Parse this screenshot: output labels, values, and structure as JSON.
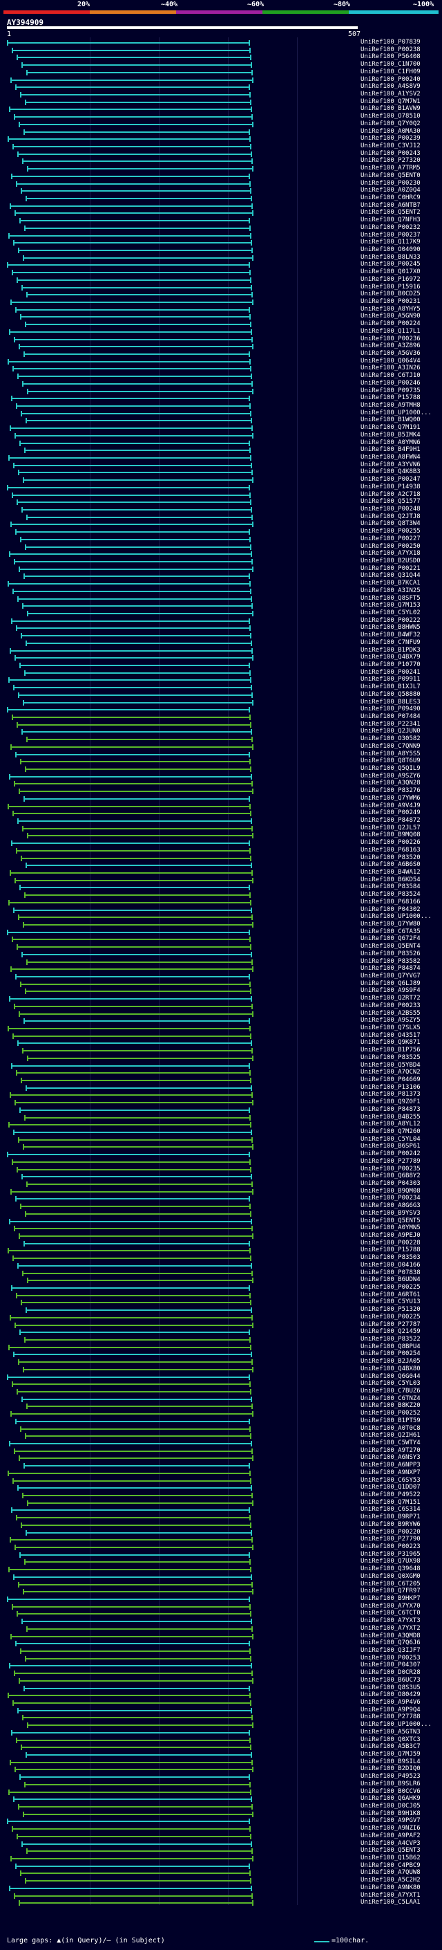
{
  "scale": {
    "labels": [
      "20%",
      "~40%",
      "~60%",
      "~80%",
      "~100%"
    ],
    "colors": [
      "#e02020",
      "#e07820",
      "#a020a0",
      "#20a020",
      "#20c0d0"
    ]
  },
  "query": {
    "title": "AY394909",
    "start": "1",
    "end": "507"
  },
  "legend": {
    "text": "Large gaps: ▲(in Query)/— (in Subject)",
    "scale": "=100char."
  },
  "hits": [
    "UniRef100_P07839",
    "UniRef100_P00238",
    "UniRef100_P56408",
    "UniRef100_C1N700",
    "UniRef100_C1FH09",
    "UniRef100_P00240",
    "UniRef100_A4S8V9",
    "UniRef100_A1YSV2",
    "UniRef100_Q7M7W1",
    "UniRef100_B1AVW9",
    "UniRef100_O78510",
    "UniRef100_Q7Y0Q2",
    "UniRef100_A0MA30",
    "UniRef100_P00239",
    "UniRef100_C3VJ12",
    "UniRef100_P00243",
    "UniRef100_P27320",
    "UniRef100_A7TRM5",
    "UniRef100_Q5ENT0",
    "UniRef100_P00230",
    "UniRef100_A0Z0Q4",
    "UniRef100_C0HRC9",
    "UniRef100_A6NTB7",
    "UniRef100_Q5ENT2",
    "UniRef100_Q7NFH3",
    "UniRef100_P00232",
    "UniRef100_P00237",
    "UniRef100_Q117K9",
    "UniRef100_O04090",
    "UniRef100_B8LN33",
    "UniRef100_P00245",
    "UniRef100_Q017X0",
    "UniRef100_P16972",
    "UniRef100_P15916",
    "UniRef100_B0CDZ5",
    "UniRef100_P00231",
    "UniRef100_A8YHY5",
    "UniRef100_A5GN90",
    "UniRef100_P00224",
    "UniRef100_Q117L1",
    "UniRef100_P00236",
    "UniRef100_A3Z896",
    "UniRef100_A5GV36",
    "UniRef100_Q064V4",
    "UniRef100_A3IN26",
    "UniRef100_C6TJ10",
    "UniRef100_P00246",
    "UniRef100_P09735",
    "UniRef100_P15788",
    "UniRef100_A9TMH8",
    "UniRef100_UP1000...",
    "UniRef100_B1WQ00",
    "UniRef100_Q7M191",
    "UniRef100_B5IMK4",
    "UniRef100_A0YMN6",
    "UniRef100_B4F9H1",
    "UniRef100_A8FWN4",
    "UniRef100_A3YVN6",
    "UniRef100_Q4K8B3",
    "UniRef100_P00247",
    "UniRef100_P14938",
    "UniRef100_A2C718",
    "UniRef100_Q51577",
    "UniRef100_P00248",
    "UniRef100_Q2JTJ8",
    "UniRef100_Q8T3W4",
    "UniRef100_P00255",
    "UniRef100_P00227",
    "UniRef100_P00250",
    "UniRef100_A7YX18",
    "UniRef100_B2USD0",
    "UniRef100_P00221",
    "UniRef100_Q31Q44",
    "UniRef100_B7KCA1",
    "UniRef100_A3IN25",
    "UniRef100_Q8SFT5",
    "UniRef100_Q7M153",
    "UniRef100_C5YL02",
    "UniRef100_P00222",
    "UniRef100_B8HWN5",
    "UniRef100_B4WF32",
    "UniRef100_C7NFU9",
    "UniRef100_B1PDK3",
    "UniRef100_Q4BX79",
    "UniRef100_P10770",
    "UniRef100_P00241",
    "UniRef100_P09911",
    "UniRef100_B1XJL7",
    "UniRef100_Q58880",
    "UniRef100_B8LES3",
    "UniRef100_P09490",
    "UniRef100_P07484",
    "UniRef100_P22341",
    "UniRef100_Q2JUN0",
    "UniRef100_O30582",
    "UniRef100_C7QNN9",
    "UniRef100_A8Y5S5",
    "UniRef100_Q8T6U9",
    "UniRef100_Q5QIL9",
    "UniRef100_A9SZY6",
    "UniRef100_A3QN28",
    "UniRef100_P83276",
    "UniRef100_Q7YWM6",
    "UniRef100_A9V4J9",
    "UniRef100_P00249",
    "UniRef100_P84872",
    "UniRef100_Q2JL57",
    "UniRef100_B9MQ08",
    "UniRef100_P00226",
    "UniRef100_P68163",
    "UniRef100_P83520",
    "UniRef100_A6B6S0",
    "UniRef100_B4WA12",
    "UniRef100_B6KD54",
    "UniRef100_P83584",
    "UniRef100_P83524",
    "UniRef100_P68166",
    "UniRef100_P04302",
    "UniRef100_UP1000...",
    "UniRef100_Q7YW80",
    "UniRef100_C6TA35",
    "UniRef100_Q672F4",
    "UniRef100_Q5ENT4",
    "UniRef100_P83526",
    "UniRef100_P83582",
    "UniRef100_P84874",
    "UniRef100_Q7YVG7",
    "UniRef100_Q6LJ89",
    "UniRef100_A9S9F4",
    "UniRef100_Q2RT72",
    "UniRef100_P00233",
    "UniRef100_A2BS55",
    "UniRef100_A9SZY5",
    "UniRef100_Q7SLX5",
    "UniRef100_O43517",
    "UniRef100_Q9K871",
    "UniRef100_B1P756",
    "UniRef100_P83525",
    "UniRef100_Q5YBD4",
    "UniRef100_A7QCN2",
    "UniRef100_P04669",
    "UniRef100_P13106",
    "UniRef100_P81373",
    "UniRef100_Q9Z0F1",
    "UniRef100_P84873",
    "UniRef100_B4B255",
    "UniRef100_A8YL12",
    "UniRef100_Q7M260",
    "UniRef100_C5YL04",
    "UniRef100_B6SP61",
    "UniRef100_P00242",
    "UniRef100_P27789",
    "UniRef100_P00235",
    "UniRef100_Q6B8Y2",
    "UniRef100_P04303",
    "UniRef100_B9QM08",
    "UniRef100_P00234",
    "UniRef100_A8G6G3",
    "UniRef100_B9YSV3",
    "UniRef100_Q5ENT5",
    "UniRef100_A0YMN5",
    "UniRef100_A9PEJ0",
    "UniRef100_P00228",
    "UniRef100_P15788",
    "UniRef100_P83503",
    "UniRef100_O04166",
    "UniRef100_P07838",
    "UniRef100_B6UDN4",
    "UniRef100_P00225",
    "UniRef100_A6RT61",
    "UniRef100_C5YU13",
    "UniRef100_P51320",
    "UniRef100_P00225",
    "UniRef100_P27787",
    "UniRef100_Q21459",
    "UniRef100_P83522",
    "UniRef100_Q8BPU4",
    "UniRef100_P00254",
    "UniRef100_B2JA05",
    "UniRef100_Q4BX80",
    "UniRef100_Q6G044",
    "UniRef100_C5YL03",
    "UniRef100_C7BUZ6",
    "UniRef100_C6TNZ4",
    "UniRef100_B8KZ20",
    "UniRef100_P00252",
    "UniRef100_B1PT59",
    "UniRef100_A0T0C8",
    "UniRef100_Q2IH61",
    "UniRef100_C5WTY4",
    "UniRef100_A9T270",
    "UniRef100_A6NSY3",
    "UniRef100_A6NPP3",
    "UniRef100_A9NXP7",
    "UniRef100_C6SY53",
    "UniRef100_Q1DD07",
    "UniRef100_P49522",
    "UniRef100_Q7M151",
    "UniRef100_C6S314",
    "UniRef100_B9RP71",
    "UniRef100_B9RYW6",
    "UniRef100_P00220",
    "UniRef100_P27790",
    "UniRef100_P00223",
    "UniRef100_P31965",
    "UniRef100_Q7UX98",
    "UniRef100_Q39648",
    "UniRef100_Q0XGM0",
    "UniRef100_C6T205",
    "UniRef100_Q7FR97",
    "UniRef100_B9HKP7",
    "UniRef100_A7YX70",
    "UniRef100_C6TCT0",
    "UniRef100_A7YXT3",
    "UniRef100_A7YXT2",
    "UniRef100_A3QMD8",
    "UniRef100_Q7Q6J6",
    "UniRef100_Q3IJF7",
    "UniRef100_P00253",
    "UniRef100_P04307",
    "UniRef100_D0CR28",
    "UniRef100_B6UC73",
    "UniRef100_Q8S3U5",
    "UniRef100_O80429",
    "UniRef100_A9P4V6",
    "UniRef100_A9P9Q4",
    "UniRef100_P27788",
    "UniRef100_UP1000...",
    "UniRef100_A5GTN3",
    "UniRef100_Q0XTC3",
    "UniRef100_A5B3C7",
    "UniRef100_Q7MJ59",
    "UniRef100_B9SIL4",
    "UniRef100_B2DIQ0",
    "UniRef100_P49523",
    "UniRef100_B9SLR6",
    "UniRef100_B0CCV6",
    "UniRef100_Q6AHK9",
    "UniRef100_D0CJ05",
    "UniRef100_B9H1K8",
    "UniRef100_A9PGV7",
    "UniRef100_A9NZI6",
    "UniRef100_A9PAF2",
    "UniRef100_A4CVP3",
    "UniRef100_Q5ENT3",
    "UniRef100_Q15B62",
    "UniRef100_C4PBC9",
    "UniRef100_A7QUW8",
    "UniRef100_A5C2H2",
    "UniRef100_A9NK80",
    "UniRef100_A7YXT1",
    "UniRef100_C5LAA1"
  ]
}
